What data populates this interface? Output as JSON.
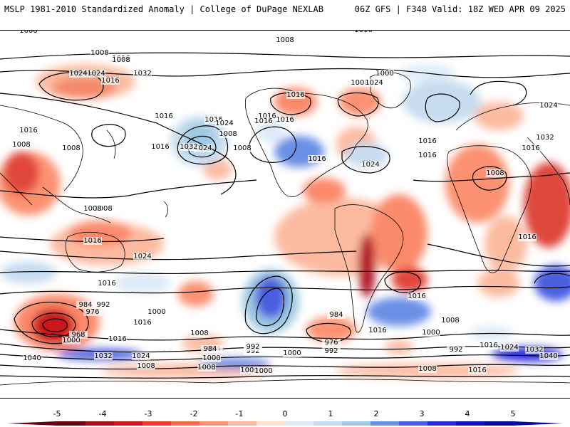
{
  "header": {
    "title": "MSLP 1981-2010 Standardized Anomaly | College of DuPage NEXLAB",
    "run": "06Z GFS | F348 Valid: 18Z WED APR 09 2025"
  },
  "contour_labels": [
    "1000",
    "1008",
    "1016",
    "1024",
    "1008",
    "1016",
    "1024",
    "1008",
    "1016",
    "1024",
    "1032",
    "1016",
    "1016",
    "1008",
    "1016",
    "1024",
    "1016",
    "1024",
    "1016",
    "1016",
    "1008",
    "1000",
    "1016",
    "1032",
    "1024",
    "1016",
    "1008",
    "1008",
    "1008",
    "1016",
    "1008",
    "1008",
    "1016",
    "1024",
    "1016",
    "1016",
    "1016",
    "1016",
    "1024",
    "1032",
    "1008",
    "1016",
    "1016",
    "1024",
    "984",
    "992",
    "976",
    "1000",
    "968",
    "1000",
    "1016",
    "984",
    "992",
    "1000",
    "1008",
    "1040",
    "1032",
    "1024",
    "984",
    "992",
    "1000",
    "1008",
    "1000",
    "984",
    "976",
    "992",
    "1016",
    "1000",
    "1008",
    "992",
    "1016",
    "1024",
    "1032",
    "1040",
    "1008",
    "1000",
    "1008",
    "1016",
    "1016"
  ],
  "colorbar": {
    "ticks": [
      "-5",
      "-4",
      "-3",
      "-2",
      "-1",
      "0",
      "1",
      "2",
      "3",
      "4",
      "5"
    ],
    "negative_colors": [
      "#67000d",
      "#a50f15",
      "#cb181d",
      "#ef3b2c",
      "#fb6a4a",
      "#fc9272",
      "#fcbba1",
      "#fee0d2"
    ],
    "positive_colors": [
      "#deebf7",
      "#c6dbef",
      "#9ecae1",
      "#6b8fe6",
      "#4a5fe0",
      "#2a2adc",
      "#1010c0",
      "#08089a"
    ]
  }
}
